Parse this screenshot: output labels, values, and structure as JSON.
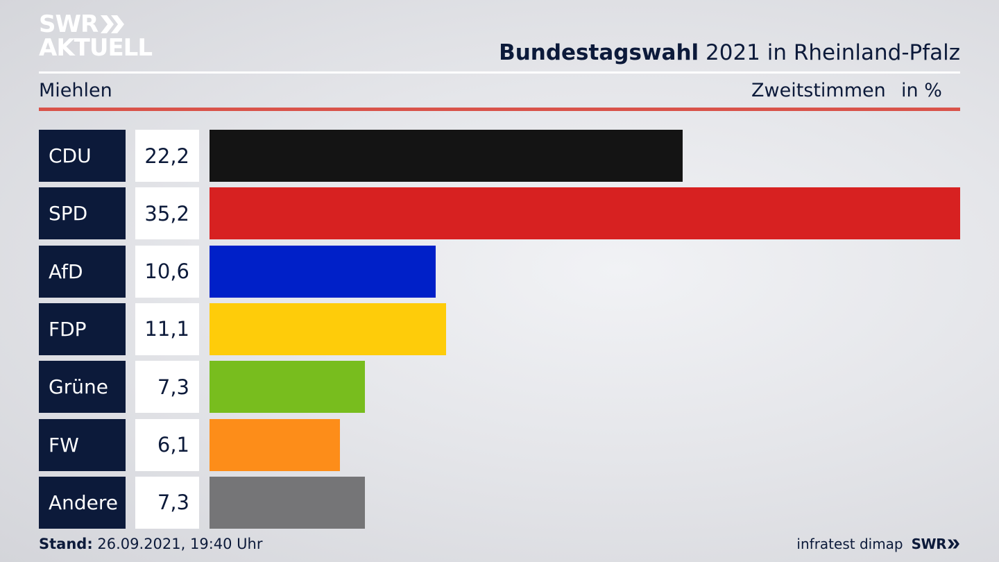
{
  "logo": {
    "line1": "SWR",
    "line2": "AKTUELL"
  },
  "header": {
    "title_bold": "Bundestagswahl",
    "title_rest": " 2021 in Rheinland-Pfalz"
  },
  "subheader": {
    "location": "Miehlen",
    "measure": "Zweitstimmen",
    "unit": "in %"
  },
  "chart_data": {
    "type": "bar",
    "orientation": "horizontal",
    "title": "Bundestagswahl 2021 in Rheinland-Pfalz",
    "xlabel": "Zweitstimmen",
    "unit": "in %",
    "xlim": [
      0,
      35.2
    ],
    "categories": [
      "CDU",
      "SPD",
      "AfD",
      "FDP",
      "Grüne",
      "FW",
      "Andere"
    ],
    "values": [
      22.2,
      35.2,
      10.6,
      11.1,
      7.3,
      6.1,
      7.3
    ],
    "value_labels": [
      "22,2",
      "35,2",
      "10,6",
      "11,1",
      "7,3",
      "6,1",
      "7,3"
    ],
    "colors": [
      "#141414",
      "#d72121",
      "#0020c8",
      "#fecc0a",
      "#78bd1e",
      "#fd8d19",
      "#757577"
    ]
  },
  "footer": {
    "stand_label": "Stand:",
    "stand_value": " 26.09.2021, 19:40 Uhr",
    "source": "infratest dimap",
    "brand": "SWR"
  },
  "colors": {
    "navy": "#0c1a3a",
    "accent_red": "#d9534a"
  }
}
